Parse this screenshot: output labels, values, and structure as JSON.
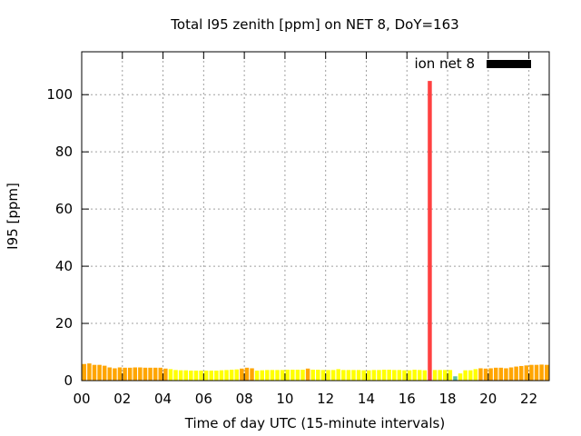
{
  "chart_data": {
    "type": "bar",
    "title": "Total I95 zenith [ppm] on NET 8, DoY=163",
    "xlabel": "Time of day UTC (15-minute intervals)",
    "ylabel": "I95 [ppm]",
    "legend": {
      "label": "ion net 8",
      "color": "#000000",
      "placement": "top-right"
    },
    "xlim": [
      0,
      23
    ],
    "ylim": [
      0,
      115
    ],
    "grid": true,
    "xtick_labels": [
      "00",
      "02",
      "04",
      "06",
      "08",
      "10",
      "12",
      "14",
      "16",
      "18",
      "20",
      "22"
    ],
    "xtick_values": [
      0,
      2,
      4,
      6,
      8,
      10,
      12,
      14,
      16,
      18,
      20,
      22
    ],
    "ytick_values": [
      0,
      20,
      40,
      60,
      80,
      100
    ],
    "color_scale": {
      "low": "#ffff00",
      "mid": "#ffa500",
      "high": "#ff4040",
      "very_low": "#5dbfa0"
    },
    "series": [
      {
        "interval_hours": 0.25,
        "values": [
          5.8,
          6.0,
          5.5,
          5.5,
          5.2,
          4.6,
          4.3,
          4.6,
          4.5,
          4.5,
          4.6,
          4.6,
          4.5,
          4.5,
          4.5,
          4.5,
          4.2,
          4.0,
          3.7,
          3.6,
          3.6,
          3.5,
          3.5,
          3.5,
          3.5,
          3.5,
          3.5,
          3.6,
          3.7,
          3.8,
          3.9,
          4.2,
          4.5,
          4.3,
          3.5,
          3.6,
          3.7,
          3.7,
          3.7,
          3.7,
          3.8,
          3.8,
          3.8,
          3.8,
          4.2,
          3.8,
          3.8,
          3.7,
          3.7,
          3.7,
          4.0,
          3.7,
          3.7,
          3.7,
          3.7,
          3.6,
          3.6,
          3.7,
          3.7,
          3.8,
          3.8,
          3.7,
          3.7,
          3.6,
          3.6,
          3.8,
          3.7,
          3.6,
          104.8,
          3.7,
          3.7,
          3.7,
          3.7,
          1.5,
          2.5,
          3.6,
          3.6,
          4.0,
          4.3,
          4.2,
          4.3,
          4.5,
          4.5,
          4.3,
          4.6,
          4.9,
          5.1,
          5.3,
          5.5,
          5.5,
          5.6,
          5.5
        ]
      }
    ]
  }
}
